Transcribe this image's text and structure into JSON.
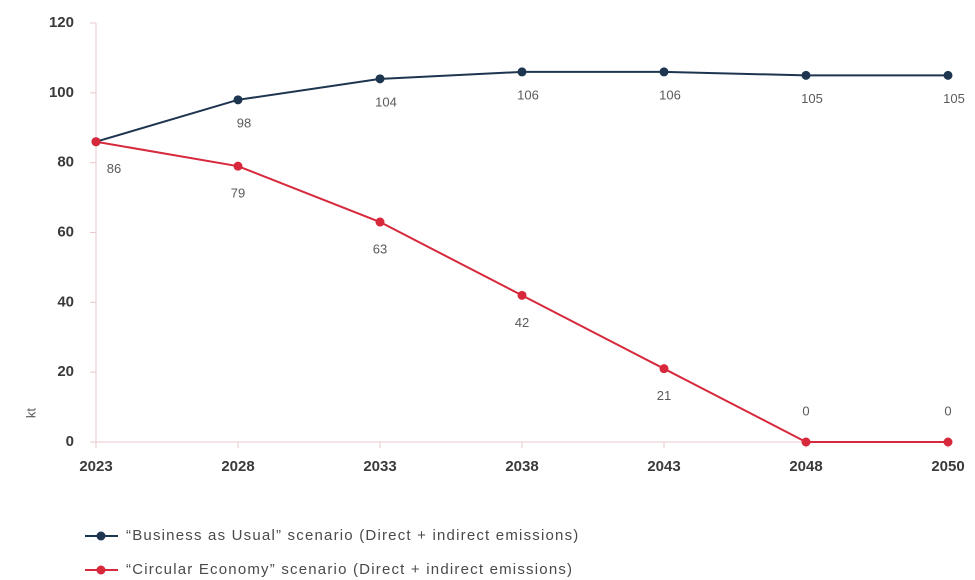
{
  "chart_data": {
    "type": "line",
    "y_label": "kt",
    "categories": [
      "2023",
      "2028",
      "2033",
      "2038",
      "2043",
      "2048",
      "2050"
    ],
    "series": [
      {
        "name": "“Business as Usual” scenario (Direct + indirect emissions)",
        "color": "#1e3550",
        "values": [
          86,
          98,
          104,
          106,
          106,
          105,
          105
        ]
      },
      {
        "name": "“Circular Economy” scenario (Direct + indirect emissions)",
        "color": "#d7283c",
        "values": [
          86,
          79,
          63,
          42,
          21,
          0,
          0
        ]
      }
    ],
    "ylim": [
      0,
      120
    ],
    "yticks": [
      0,
      20,
      40,
      60,
      80,
      100,
      120
    ]
  }
}
